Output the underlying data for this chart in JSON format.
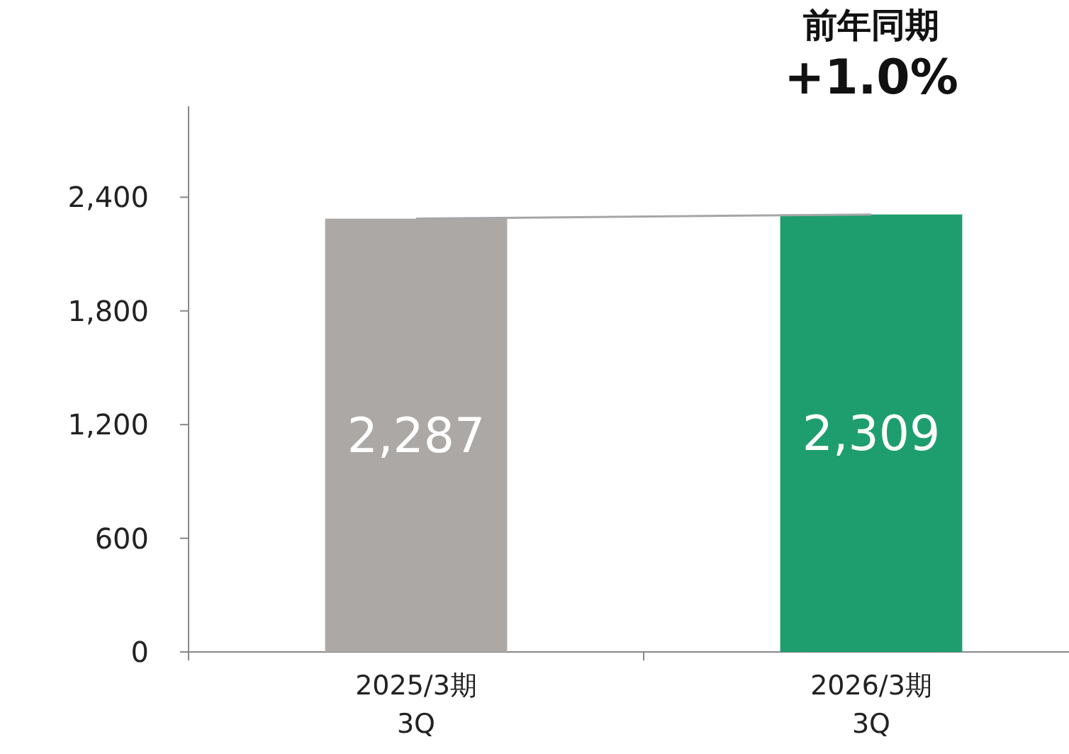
{
  "chart_data": {
    "type": "bar",
    "categories": [
      "2025/3期\n3Q",
      "2026/3期\n3Q"
    ],
    "series": [
      {
        "colors": [
          "#aca8a6",
          "#1e9e6e"
        ],
        "values": [
          2287,
          2309
        ],
        "value_labels": [
          "2,287",
          "2,309"
        ]
      },
      {
        "type": "line",
        "color": "#a6a6a6",
        "values": [
          2287,
          2309
        ]
      }
    ],
    "ylim": [
      0,
      2880
    ],
    "yticks": [
      {
        "value": 0,
        "label": "0"
      },
      {
        "value": 600,
        "label": "600"
      },
      {
        "value": 1200,
        "label": "1,200"
      },
      {
        "value": 1800,
        "label": "1,800"
      },
      {
        "value": 2400,
        "label": "2,400"
      }
    ],
    "grid": false,
    "annotations": [
      "前年同期",
      "+1.0%"
    ]
  }
}
